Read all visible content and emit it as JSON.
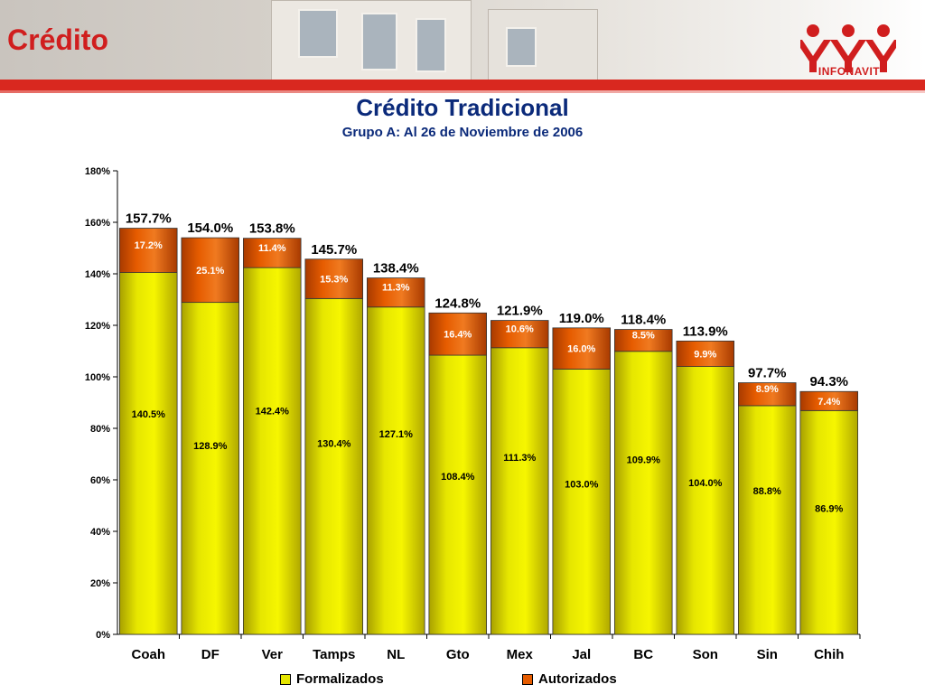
{
  "header": {
    "section_title": "Crédito",
    "logo_text": "INFONAVIT"
  },
  "colors": {
    "formalizados": "#e6e600",
    "autorizados": "#e65c00",
    "title": "#0b2a7a",
    "brand_red": "#d01e1e"
  },
  "chart_data": {
    "type": "bar",
    "stacked": true,
    "title": "Crédito Tradicional",
    "subtitle": "Grupo A: Al 26 de Noviembre de 2006",
    "xlabel": "",
    "ylabel": "",
    "ylim": [
      0,
      180
    ],
    "yticks": [
      "0%",
      "20%",
      "40%",
      "60%",
      "80%",
      "100%",
      "120%",
      "140%",
      "160%",
      "180%"
    ],
    "grid": false,
    "legend_position": "bottom",
    "categories": [
      "Coah",
      "DF",
      "Ver",
      "Tamps",
      "NL",
      "Gto",
      "Mex",
      "Jal",
      "BC",
      "Son",
      "Sin",
      "Chih"
    ],
    "series": [
      {
        "name": "Formalizados",
        "values": [
          140.5,
          128.9,
          142.4,
          130.4,
          127.1,
          108.4,
          111.3,
          103.0,
          109.9,
          104.0,
          88.8,
          86.9
        ],
        "labels": [
          "140.5%",
          "128.9%",
          "142.4%",
          "130.4%",
          "127.1%",
          "108.4%",
          "111.3%",
          "103.0%",
          "109.9%",
          "104.0%",
          "88.8%",
          "86.9%"
        ]
      },
      {
        "name": "Autorizados",
        "values": [
          17.2,
          25.1,
          11.4,
          15.3,
          11.3,
          16.4,
          10.6,
          16.0,
          8.5,
          9.9,
          8.9,
          7.4
        ],
        "labels": [
          "17.2%",
          "25.1%",
          "11.4%",
          "15.3%",
          "11.3%",
          "16.4%",
          "10.6%",
          "16.0%",
          "8.5%",
          "9.9%",
          "8.9%",
          "7.4%"
        ]
      }
    ],
    "totals": [
      157.7,
      154.0,
      153.8,
      145.7,
      138.4,
      124.8,
      121.9,
      119.0,
      118.4,
      113.9,
      97.7,
      94.3
    ],
    "total_labels": [
      "157.7%",
      "154.0%",
      "153.8%",
      "145.7%",
      "138.4%",
      "124.8%",
      "121.9%",
      "119.0%",
      "118.4%",
      "113.9%",
      "97.7%",
      "94.3%"
    ]
  }
}
